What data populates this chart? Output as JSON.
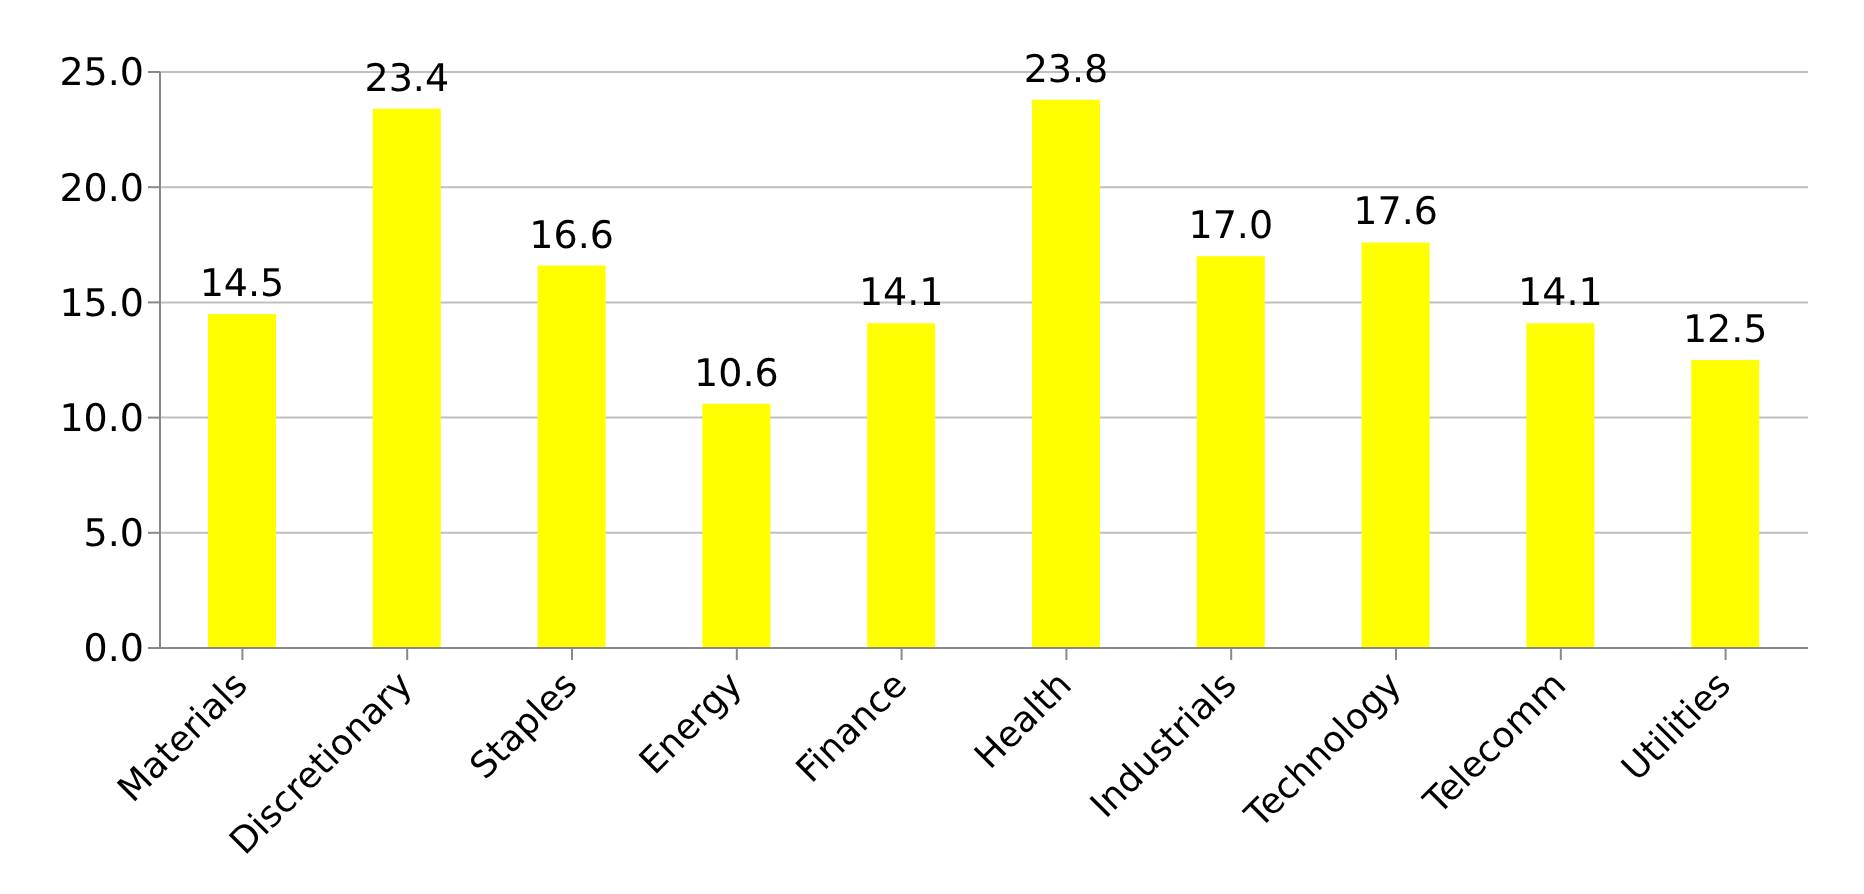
{
  "chart_data": {
    "type": "bar",
    "categories": [
      "Materials",
      "Discretionary",
      "Staples",
      "Energy",
      "Finance",
      "Health",
      "Industrials",
      "Technology",
      "Telecomm",
      "Utilities"
    ],
    "values": [
      14.5,
      23.4,
      16.6,
      10.6,
      14.1,
      23.8,
      17.0,
      17.6,
      14.1,
      12.5
    ],
    "value_labels": [
      "14.5",
      "23.4",
      "16.6",
      "10.6",
      "14.1",
      "23.8",
      "17.0",
      "17.6",
      "14.1",
      "12.5"
    ],
    "color": "#ffff00",
    "ylim": [
      0,
      25
    ],
    "yticks": [
      {
        "value": 0,
        "label": "0.0"
      },
      {
        "value": 5,
        "label": "5.0"
      },
      {
        "value": 10,
        "label": "10.0"
      },
      {
        "value": 15,
        "label": "15.0"
      },
      {
        "value": 20,
        "label": "20.0"
      },
      {
        "value": 25,
        "label": "25.0"
      }
    ],
    "grid": "y",
    "legend": false
  }
}
